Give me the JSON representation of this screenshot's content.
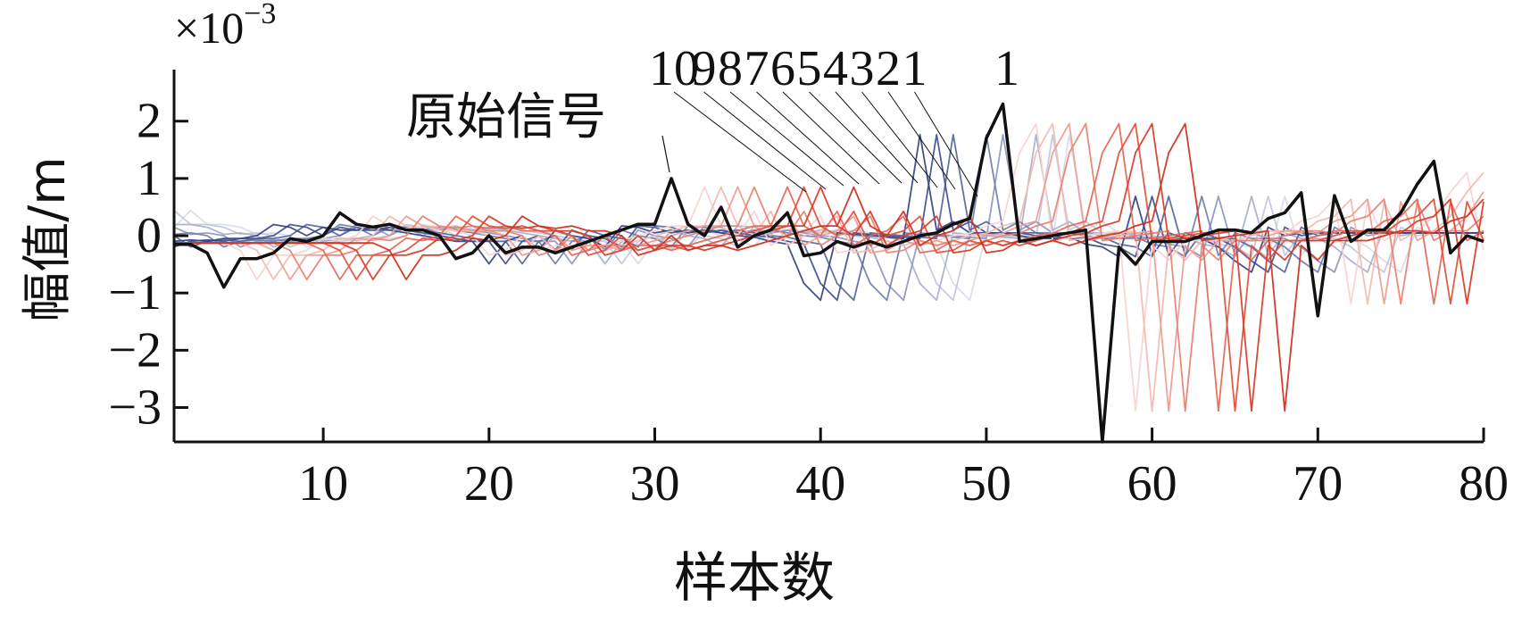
{
  "chart_data": {
    "type": "line",
    "xlabel": "样本数",
    "ylabel": "幅值/m",
    "scale_label": "×10",
    "scale_exponent": "−3",
    "xlim": [
      1,
      80
    ],
    "ylim": [
      -3.6,
      2.9
    ],
    "xticks": [
      10,
      20,
      30,
      40,
      50,
      60,
      70,
      80
    ],
    "yticks": [
      -3,
      -2,
      -1,
      0,
      1,
      2
    ],
    "ytick_labels": [
      "−3",
      "−2",
      "−1",
      "0",
      "1",
      "2"
    ],
    "grid": false,
    "colors": {
      "original": "#111111",
      "red_family": "#e8503c",
      "blue_family": "#3a4a8c"
    },
    "original_label": "原始信号",
    "series_labels": [
      "10",
      "9",
      "8",
      "7",
      "6",
      "5",
      "4",
      "3",
      "2",
      "1"
    ],
    "original_signal": [
      -0.15,
      -0.15,
      -0.3,
      -0.9,
      -0.4,
      -0.4,
      -0.3,
      -0.05,
      -0.1,
      0.0,
      0.4,
      0.2,
      0.15,
      0.2,
      0.1,
      0.1,
      0.0,
      -0.4,
      -0.3,
      0.0,
      -0.3,
      -0.2,
      -0.2,
      -0.3,
      -0.2,
      -0.1,
      0.0,
      0.1,
      0.2,
      0.2,
      1.0,
      0.2,
      0.0,
      0.5,
      -0.2,
      0.0,
      0.1,
      0.4,
      -0.35,
      -0.3,
      -0.1,
      -0.2,
      -0.1,
      -0.2,
      -0.1,
      0.0,
      0.05,
      0.2,
      0.3,
      1.7,
      2.3,
      -0.1,
      -0.05,
      0.0,
      0.05,
      0.1,
      -3.6,
      -0.2,
      -0.5,
      -0.1,
      -0.1,
      -0.1,
      0.0,
      0.1,
      0.1,
      0.05,
      0.3,
      0.4,
      0.75,
      -1.4,
      0.7,
      -0.1,
      0.1,
      0.1,
      0.4,
      0.9,
      1.3,
      -0.3,
      0.0,
      -0.1
    ]
  }
}
